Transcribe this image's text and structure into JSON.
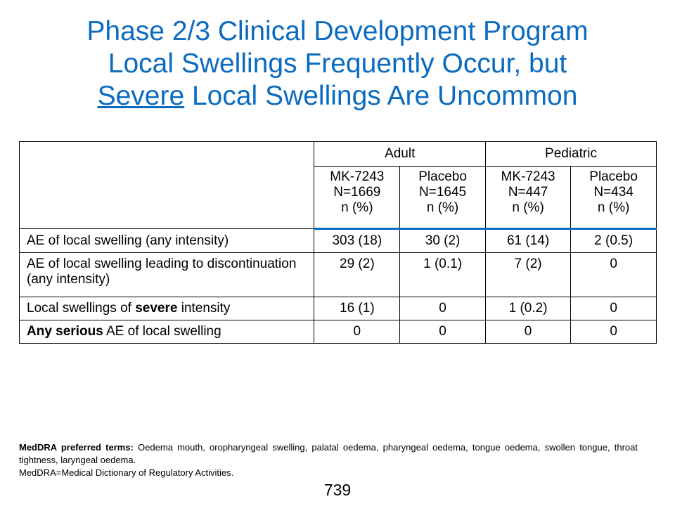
{
  "title": {
    "line1": "Phase 2/3 Clinical Development Program",
    "line2": "Local Swellings Frequently Occur, but",
    "line3_underlined": "Severe",
    "line3_rest": " Local Swellings Are Uncommon"
  },
  "table": {
    "groups": [
      "Adult",
      "Pediatric"
    ],
    "arms": [
      {
        "name": "MK-7243",
        "n": "N=1669",
        "unit": "n (%)"
      },
      {
        "name": "Placebo",
        "n": "N=1645",
        "unit": "n (%)"
      },
      {
        "name": "MK-7243",
        "n": "N=447",
        "unit": "n (%)"
      },
      {
        "name": "Placebo",
        "n": "N=434",
        "unit": "n (%)"
      }
    ],
    "rows": [
      {
        "label_pre": "AE of local swelling (any intensity)",
        "label_bold": "",
        "label_post": "",
        "values": [
          "303 (18)",
          "30 (2)",
          "61 (14)",
          "2 (0.5)"
        ]
      },
      {
        "label_pre": "AE of local swelling leading to discontinuation (any intensity)",
        "label_bold": "",
        "label_post": "",
        "values": [
          "29 (2)",
          "1 (0.1)",
          "7 (2)",
          "0"
        ]
      },
      {
        "label_pre": "Local swellings of ",
        "label_bold": "severe",
        "label_post": " intensity",
        "values": [
          "16 (1)",
          "0",
          "1 (0.2)",
          "0"
        ]
      },
      {
        "label_pre": "",
        "label_bold": "Any serious",
        "label_post": " AE of local swelling",
        "values": [
          "0",
          "0",
          "0",
          "0"
        ]
      }
    ]
  },
  "footnote": {
    "terms_label": "MedDRA preferred terms:",
    "terms_text": " Oedema mouth, oropharyngeal swelling, palatal oedema, pharyngeal oedema, tongue oedema, swollen tongue, throat tightness, laryngeal oedema.",
    "definition": "MedDRA=Medical Dictionary of Regulatory Activities."
  },
  "page_number": "739",
  "colors": {
    "title": "#0b6bbf",
    "header_rule": "#0b6bbf"
  }
}
